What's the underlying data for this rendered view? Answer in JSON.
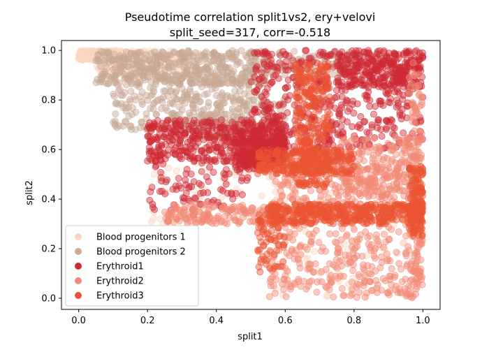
{
  "chart_data": {
    "type": "scatter",
    "title": "Pseudotime correlation split1vs2, ery+velovi",
    "subtitle": "split_seed=317, corr=-0.518",
    "xlabel": "split1",
    "ylabel": "split2",
    "xlim": [
      -0.05,
      1.05
    ],
    "ylim": [
      -0.045,
      1.04
    ],
    "xticks": [
      "0.0",
      "0.2",
      "0.4",
      "0.6",
      "0.8",
      "1.0"
    ],
    "yticks": [
      "0.0",
      "0.2",
      "0.4",
      "0.6",
      "0.8",
      "1.0"
    ],
    "legend_position": "lower-left",
    "grid": false,
    "series": [
      {
        "name": "Blood progenitors 1",
        "color": "#fbd5c2",
        "clusters": [
          {
            "x": [
              0.0,
              0.12
            ],
            "y": [
              0.96,
              1.0
            ],
            "n": 200
          },
          {
            "x": [
              0.05,
              0.35
            ],
            "y": [
              0.9,
              1.0
            ],
            "n": 180
          },
          {
            "x": [
              0.2,
              0.6
            ],
            "y": [
              0.3,
              0.55
            ],
            "n": 70
          },
          {
            "x": [
              0.55,
              1.0
            ],
            "y": [
              0.0,
              0.5
            ],
            "n": 70
          }
        ]
      },
      {
        "name": "Blood progenitors 2",
        "color": "#c8a894",
        "clusters": [
          {
            "x": [
              0.05,
              0.55
            ],
            "y": [
              0.86,
              1.0
            ],
            "n": 420
          },
          {
            "x": [
              0.1,
              0.5
            ],
            "y": [
              0.68,
              0.9
            ],
            "n": 260
          },
          {
            "x": [
              0.3,
              0.6
            ],
            "y": [
              0.6,
              0.82
            ],
            "n": 120
          },
          {
            "x": [
              0.5,
              0.8
            ],
            "y": [
              0.9,
              1.0
            ],
            "n": 80
          }
        ]
      },
      {
        "name": "Erythroid1",
        "color": "#cf2a33",
        "clusters": [
          {
            "x": [
              0.2,
              0.6
            ],
            "y": [
              0.55,
              0.72
            ],
            "n": 450
          },
          {
            "x": [
              0.5,
              1.0
            ],
            "y": [
              0.6,
              1.0
            ],
            "n": 500
          },
          {
            "x": [
              0.75,
              1.0
            ],
            "y": [
              0.85,
              1.0
            ],
            "n": 250
          },
          {
            "x": [
              0.2,
              0.5
            ],
            "y": [
              0.35,
              0.55
            ],
            "n": 90
          },
          {
            "x": [
              0.45,
              0.6
            ],
            "y": [
              0.52,
              0.68
            ],
            "n": 200
          }
        ]
      },
      {
        "name": "Erythroid2",
        "color": "#f28a76",
        "clusters": [
          {
            "x": [
              0.55,
              1.0
            ],
            "y": [
              0.0,
              0.55
            ],
            "n": 550
          },
          {
            "x": [
              0.25,
              0.6
            ],
            "y": [
              0.3,
              0.38
            ],
            "n": 160
          },
          {
            "x": [
              0.75,
              1.0
            ],
            "y": [
              0.4,
              0.65
            ],
            "n": 250
          },
          {
            "x": [
              0.96,
              1.0
            ],
            "y": [
              0.05,
              0.95
            ],
            "n": 120
          }
        ]
      },
      {
        "name": "Erythroid3",
        "color": "#eb5434",
        "clusters": [
          {
            "x": [
              0.55,
              1.0
            ],
            "y": [
              0.3,
              0.38
            ],
            "n": 420
          },
          {
            "x": [
              0.63,
              0.73
            ],
            "y": [
              0.45,
              0.95
            ],
            "n": 280
          },
          {
            "x": [
              0.52,
              0.8
            ],
            "y": [
              0.5,
              0.6
            ],
            "n": 250
          },
          {
            "x": [
              0.96,
              1.0
            ],
            "y": [
              0.25,
              0.55
            ],
            "n": 120
          },
          {
            "x": [
              0.52,
              0.6
            ],
            "y": [
              0.1,
              0.35
            ],
            "n": 70
          }
        ]
      }
    ]
  }
}
